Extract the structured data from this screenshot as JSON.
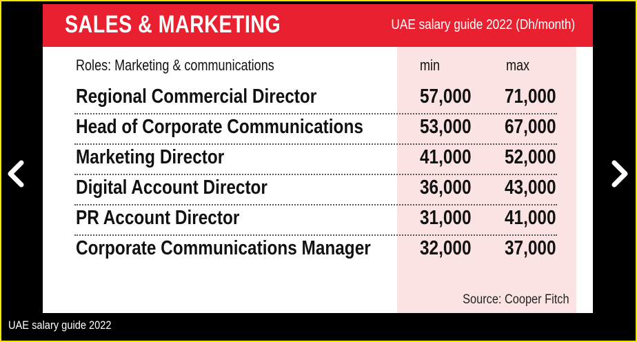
{
  "header": {
    "title": "SALES & MARKETING",
    "subtitle": "UAE salary guide 2022 (Dh/month)"
  },
  "table": {
    "columns": {
      "roles": "Roles: Marketing & communications",
      "min": "min",
      "max": "max"
    },
    "rows": [
      {
        "role": "Regional Commercial Director",
        "min": "57,000",
        "max": "71,000"
      },
      {
        "role": "Head of Corporate Communications",
        "min": "53,000",
        "max": "67,000"
      },
      {
        "role": "Marketing Director",
        "min": "41,000",
        "max": "52,000"
      },
      {
        "role": "Digital Account Director",
        "min": "36,000",
        "max": "43,000"
      },
      {
        "role": "PR Account Director",
        "min": "31,000",
        "max": "41,000"
      },
      {
        "role": "Corporate Communications Manager",
        "min": "32,000",
        "max": "37,000"
      }
    ]
  },
  "source": "Source: Cooper Fitch",
  "caption": "UAE salary guide 2022",
  "nav": {
    "prev_icon": "chevron-left-icon",
    "next_icon": "chevron-right-icon"
  },
  "colors": {
    "header_red": "#e8202f",
    "shade_pink": "#fbe3e3",
    "frame_yellow": "#f2e600"
  }
}
